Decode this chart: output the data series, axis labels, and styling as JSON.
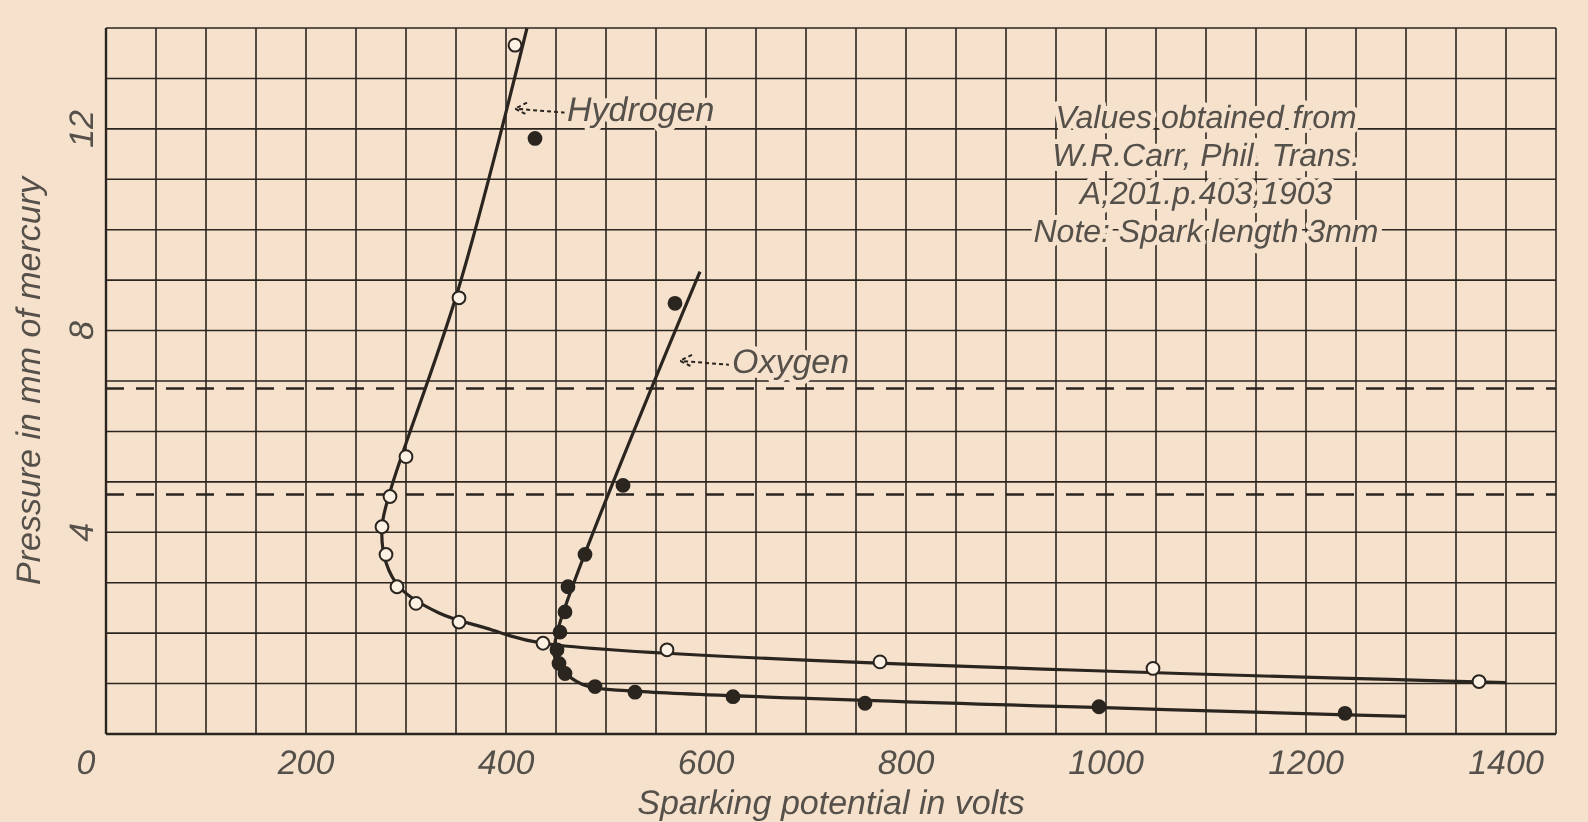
{
  "chart_data": {
    "type": "scatter",
    "xlabel": "Sparking potential in volts",
    "ylabel": "Pressure in mm of mercury",
    "xlim": [
      0,
      1450
    ],
    "ylim": [
      0,
      14
    ],
    "xticks": [
      0,
      {
        "value": 50,
        "label": null
      },
      {
        "value": 100,
        "label": null
      },
      {
        "value": 150,
        "label": null
      },
      200,
      {
        "value": 250,
        "label": null
      },
      {
        "value": 300,
        "label": null
      },
      {
        "value": 350,
        "label": null
      },
      400,
      {
        "value": 450,
        "label": null
      },
      {
        "value": 500,
        "label": null
      },
      {
        "value": 550,
        "label": null
      },
      600,
      {
        "value": 650,
        "label": null
      },
      {
        "value": 700,
        "label": null
      },
      {
        "value": 750,
        "label": null
      },
      800,
      {
        "value": 850,
        "label": null
      },
      {
        "value": 900,
        "label": null
      },
      {
        "value": 950,
        "label": null
      },
      1000,
      {
        "value": 1050,
        "label": null
      },
      {
        "value": 1100,
        "label": null
      },
      {
        "value": 1150,
        "label": null
      },
      1200,
      {
        "value": 1250,
        "label": null
      },
      {
        "value": 1300,
        "label": null
      },
      {
        "value": 1350,
        "label": null
      },
      1400,
      {
        "value": 1450,
        "label": null
      }
    ],
    "yticks": [
      {
        "value": 0,
        "label": null
      },
      {
        "value": 1,
        "label": null
      },
      {
        "value": 2,
        "label": null
      },
      {
        "value": 3,
        "label": null
      },
      4,
      {
        "value": 5,
        "label": null
      },
      {
        "value": 6,
        "label": null
      },
      {
        "value": 7,
        "label": null
      },
      8,
      {
        "value": 9,
        "label": null
      },
      {
        "value": 10,
        "label": null
      },
      {
        "value": 11,
        "label": null
      },
      12,
      {
        "value": 13,
        "label": null
      },
      {
        "value": 14,
        "label": null
      }
    ],
    "grid": true,
    "series": [
      {
        "type": "line",
        "marker": "none",
        "color": "#2b2520",
        "x": [
          421,
          352,
          284,
          276,
          280,
          294,
          333,
          380,
          437,
          1400
        ],
        "values": [
          14,
          8.8,
          4.8,
          4.1,
          3.4,
          2.9,
          2.4,
          2.1,
          1.8,
          1.02
        ]
      },
      {
        "type": "line",
        "marker": "none",
        "color": "#2b2520",
        "x": [
          594,
          451,
          449,
          461,
          481,
          528,
          1300
        ],
        "values": [
          9.17,
          2.0,
          1.5,
          1.18,
          0.95,
          0.85,
          0.35
        ]
      },
      {
        "marker": "circle",
        "color": "#fdf1e4",
        "x": [
          409,
          353,
          300,
          284,
          276,
          280,
          291,
          310,
          353,
          437,
          561,
          774,
          1047,
          1373
        ],
        "values": [
          13.66,
          8.65,
          5.5,
          4.71,
          4.11,
          3.56,
          2.92,
          2.59,
          2.22,
          1.8,
          1.67,
          1.43,
          1.3,
          1.04
        ]
      },
      {
        "marker": "circle",
        "color": "#2b2520",
        "x": [
          429,
          569,
          517,
          479,
          462,
          459,
          454,
          451,
          453,
          459,
          489,
          529,
          627,
          759,
          993,
          1239
        ],
        "values": [
          11.81,
          8.54,
          4.93,
          3.56,
          2.92,
          2.42,
          2.02,
          1.67,
          1.4,
          1.2,
          0.94,
          0.83,
          0.74,
          0.61,
          0.54,
          0.41
        ]
      }
    ],
    "ref_lines": [
      {
        "axis": "y",
        "value": 6.85,
        "line_style": "dashed"
      },
      {
        "axis": "y",
        "value": 4.75,
        "line_style": "dashed"
      }
    ],
    "annotations": [
      {
        "text": "Hydrogen",
        "x": 395,
        "y": 12.4
      },
      {
        "text": "Oxygen",
        "x": 560,
        "y": 7.4
      },
      "Values obtained from\nW.R.Carr, Phil. Trans.\nA,201.p.403,1903\nNote: Spark length 3mm"
    ]
  }
}
